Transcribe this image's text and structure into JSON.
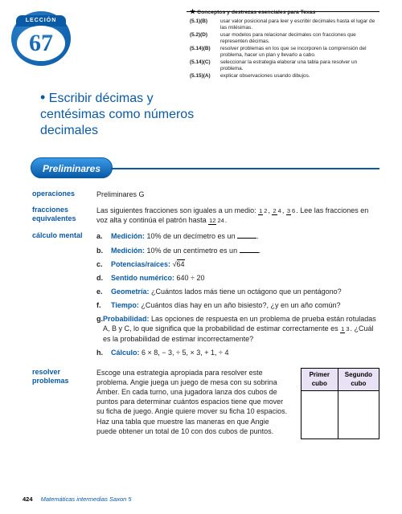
{
  "badge": {
    "ribbon": "LECCIÓN",
    "number": "67"
  },
  "title": "Escribir décimas y centésimas como números decimales",
  "standards": {
    "header": "Conceptos y destrezas esenciales para Texas",
    "items": [
      {
        "code": "(5.1)(B)",
        "text": "usar valor posicional para leer y escribir decimales hasta el lugar de las milésimas."
      },
      {
        "code": "(5.2)(D)",
        "text": "usar modelos para relacionar decimales con fracciones que representen décimas."
      },
      {
        "code": "(5.14)(B)",
        "text": "resolver problemas en los que se incorporen la comprensión del problema, hacer un plan y llevarlo a cabo."
      },
      {
        "code": "(5.14)(C)",
        "text": "seleccionar la estrategia elaborar una tabla para resolver un problema."
      },
      {
        "code": "(5.15)(A)",
        "text": "explicar observaciones usando dibujos."
      }
    ]
  },
  "preliminares_pill": "Preliminares",
  "sections": {
    "operaciones": {
      "label": "operaciones",
      "text": "Preliminares G"
    },
    "fracciones": {
      "label": "fracciones equivalentes",
      "text_before": "Las siguientes fracciones son iguales a un medio: ",
      "fracs": [
        {
          "n": "1",
          "d": "2"
        },
        {
          "n": "2",
          "d": "4"
        },
        {
          "n": "3",
          "d": "6"
        }
      ],
      "text_mid": ". Lee las fracciones en voz alta y continúa el patrón hasta ",
      "last": {
        "n": "12",
        "d": "24"
      },
      "text_after": "."
    },
    "mental": {
      "label": "cálculo mental",
      "items": [
        {
          "letter": "a.",
          "cat": "Medición:",
          "text": " 10% de un decímetro es un ",
          "blank": true,
          "after": "."
        },
        {
          "letter": "b.",
          "cat": "Medición:",
          "text": " 10% de un centímetro es un ",
          "blank": true,
          "after": "."
        },
        {
          "letter": "c.",
          "cat": "Potencias/raíces:",
          "text": " ",
          "sqrt": "64"
        },
        {
          "letter": "d.",
          "cat": "Sentido numérico:",
          "text": " 640 ÷ 20"
        },
        {
          "letter": "e.",
          "cat": "Geometría:",
          "text": " ¿Cuántos lados más tiene un octágono que un pentágono?"
        },
        {
          "letter": "f.",
          "cat": "Tiempo:",
          "text": " ¿Cuántos días hay en un año bisiesto?, ¿y en un año común?"
        },
        {
          "letter": "g.",
          "cat": "Probabilidad:",
          "text": " Las opciones de respuesta en un problema de prueba están rotuladas A, B y C, lo que significa que la probabilidad de estimar correctamente es ",
          "frac": {
            "n": "1",
            "d": "3"
          },
          "after": ". ¿Cuál es la probabilidad de estimar incorrectamente?"
        },
        {
          "letter": "h.",
          "cat": "Cálculo:",
          "text": " 6 × 8, − 3, ÷ 5, × 3, + 1, ÷ 4"
        }
      ]
    },
    "resolver": {
      "label": "resolver problemas",
      "text": "Escoge una estrategia apropiada para resolver este problema. Angie juega un juego de mesa con su sobrina Ámber. En cada turno, una jugadora lanza dos cubos de puntos para determinar cuántos espacios tiene que mover su ficha de juego. Angie quiere mover su ficha 10 espacios. Haz una tabla que muestre las maneras en que Angie puede obtener un total de 10 con dos cubos de puntos.",
      "table": {
        "h1": "Primer cubo",
        "h2": "Segundo cubo"
      }
    }
  },
  "footer": {
    "page": "424",
    "book": "Matemáticas intermedias Saxon 5"
  }
}
